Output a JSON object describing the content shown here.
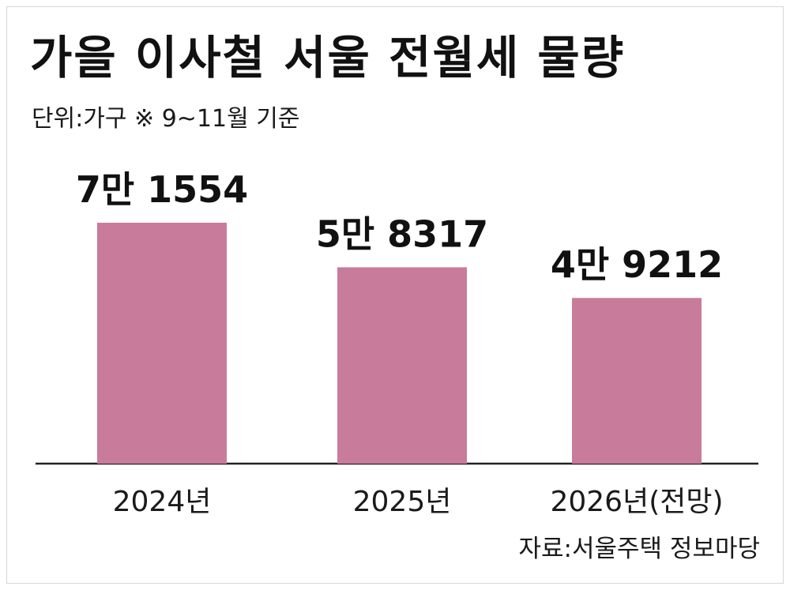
{
  "chart_data": {
    "type": "bar",
    "title": "가을 이사철 서울 전월세 물량",
    "subtitle": "단위:가구  ※ 9~11월 기준",
    "categories": [
      "2024년",
      "2025년",
      "2026년(전망)"
    ],
    "values": [
      71554,
      58317,
      49212
    ],
    "value_labels": [
      "7만 1554",
      "5만 8317",
      "4만 9212"
    ],
    "ylim": [
      0,
      80000
    ],
    "grid": false,
    "legend": "none",
    "source": "자료:서울주택 정보마당",
    "bar_color": "#c87b9a",
    "axis_color": "#222222"
  }
}
